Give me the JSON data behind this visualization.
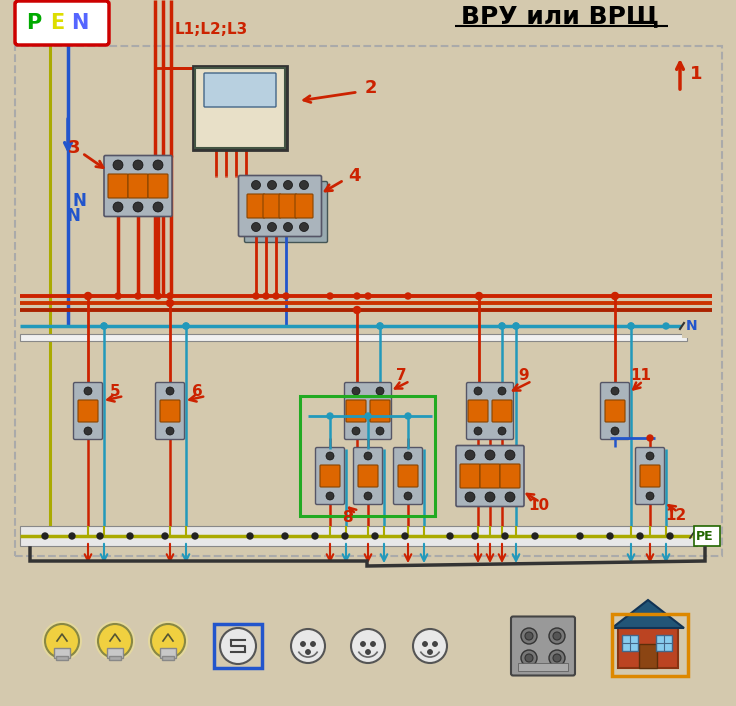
{
  "title": "ВРУ или ВРЩ",
  "pen_label": "PEN",
  "n_label": "N",
  "pe_label": "PE",
  "l_label": "L1;L2;L3",
  "bg_color": "#d4c9ae",
  "wire_red": "#cc2200",
  "wire_red2": "#b04030",
  "wire_blue": "#2255cc",
  "wire_cyan": "#2299bb",
  "wire_yellow": "#ccaa00",
  "wire_yg": "#99aa00",
  "dashed_color": "#aaaaaa",
  "breaker_body": "#aab4bc",
  "breaker_orange": "#dd6600",
  "breaker_edge": "#555566",
  "meter_body": "#e8e0c8",
  "meter_win": "#b8d0e0",
  "meter_edge": "#445544",
  "green_box": "#22aa22",
  "orange_box": "#dd8800",
  "blue_box": "#2255cc",
  "pen_p": "#00aa00",
  "pen_e": "#dddd00",
  "pen_n": "#5566ff",
  "red_num": "#cc0000",
  "blue_n": "#2255cc",
  "n_bus_end_color": "#333333",
  "pe_label_color": "#226600",
  "icon_bg": "#d4c9ae"
}
